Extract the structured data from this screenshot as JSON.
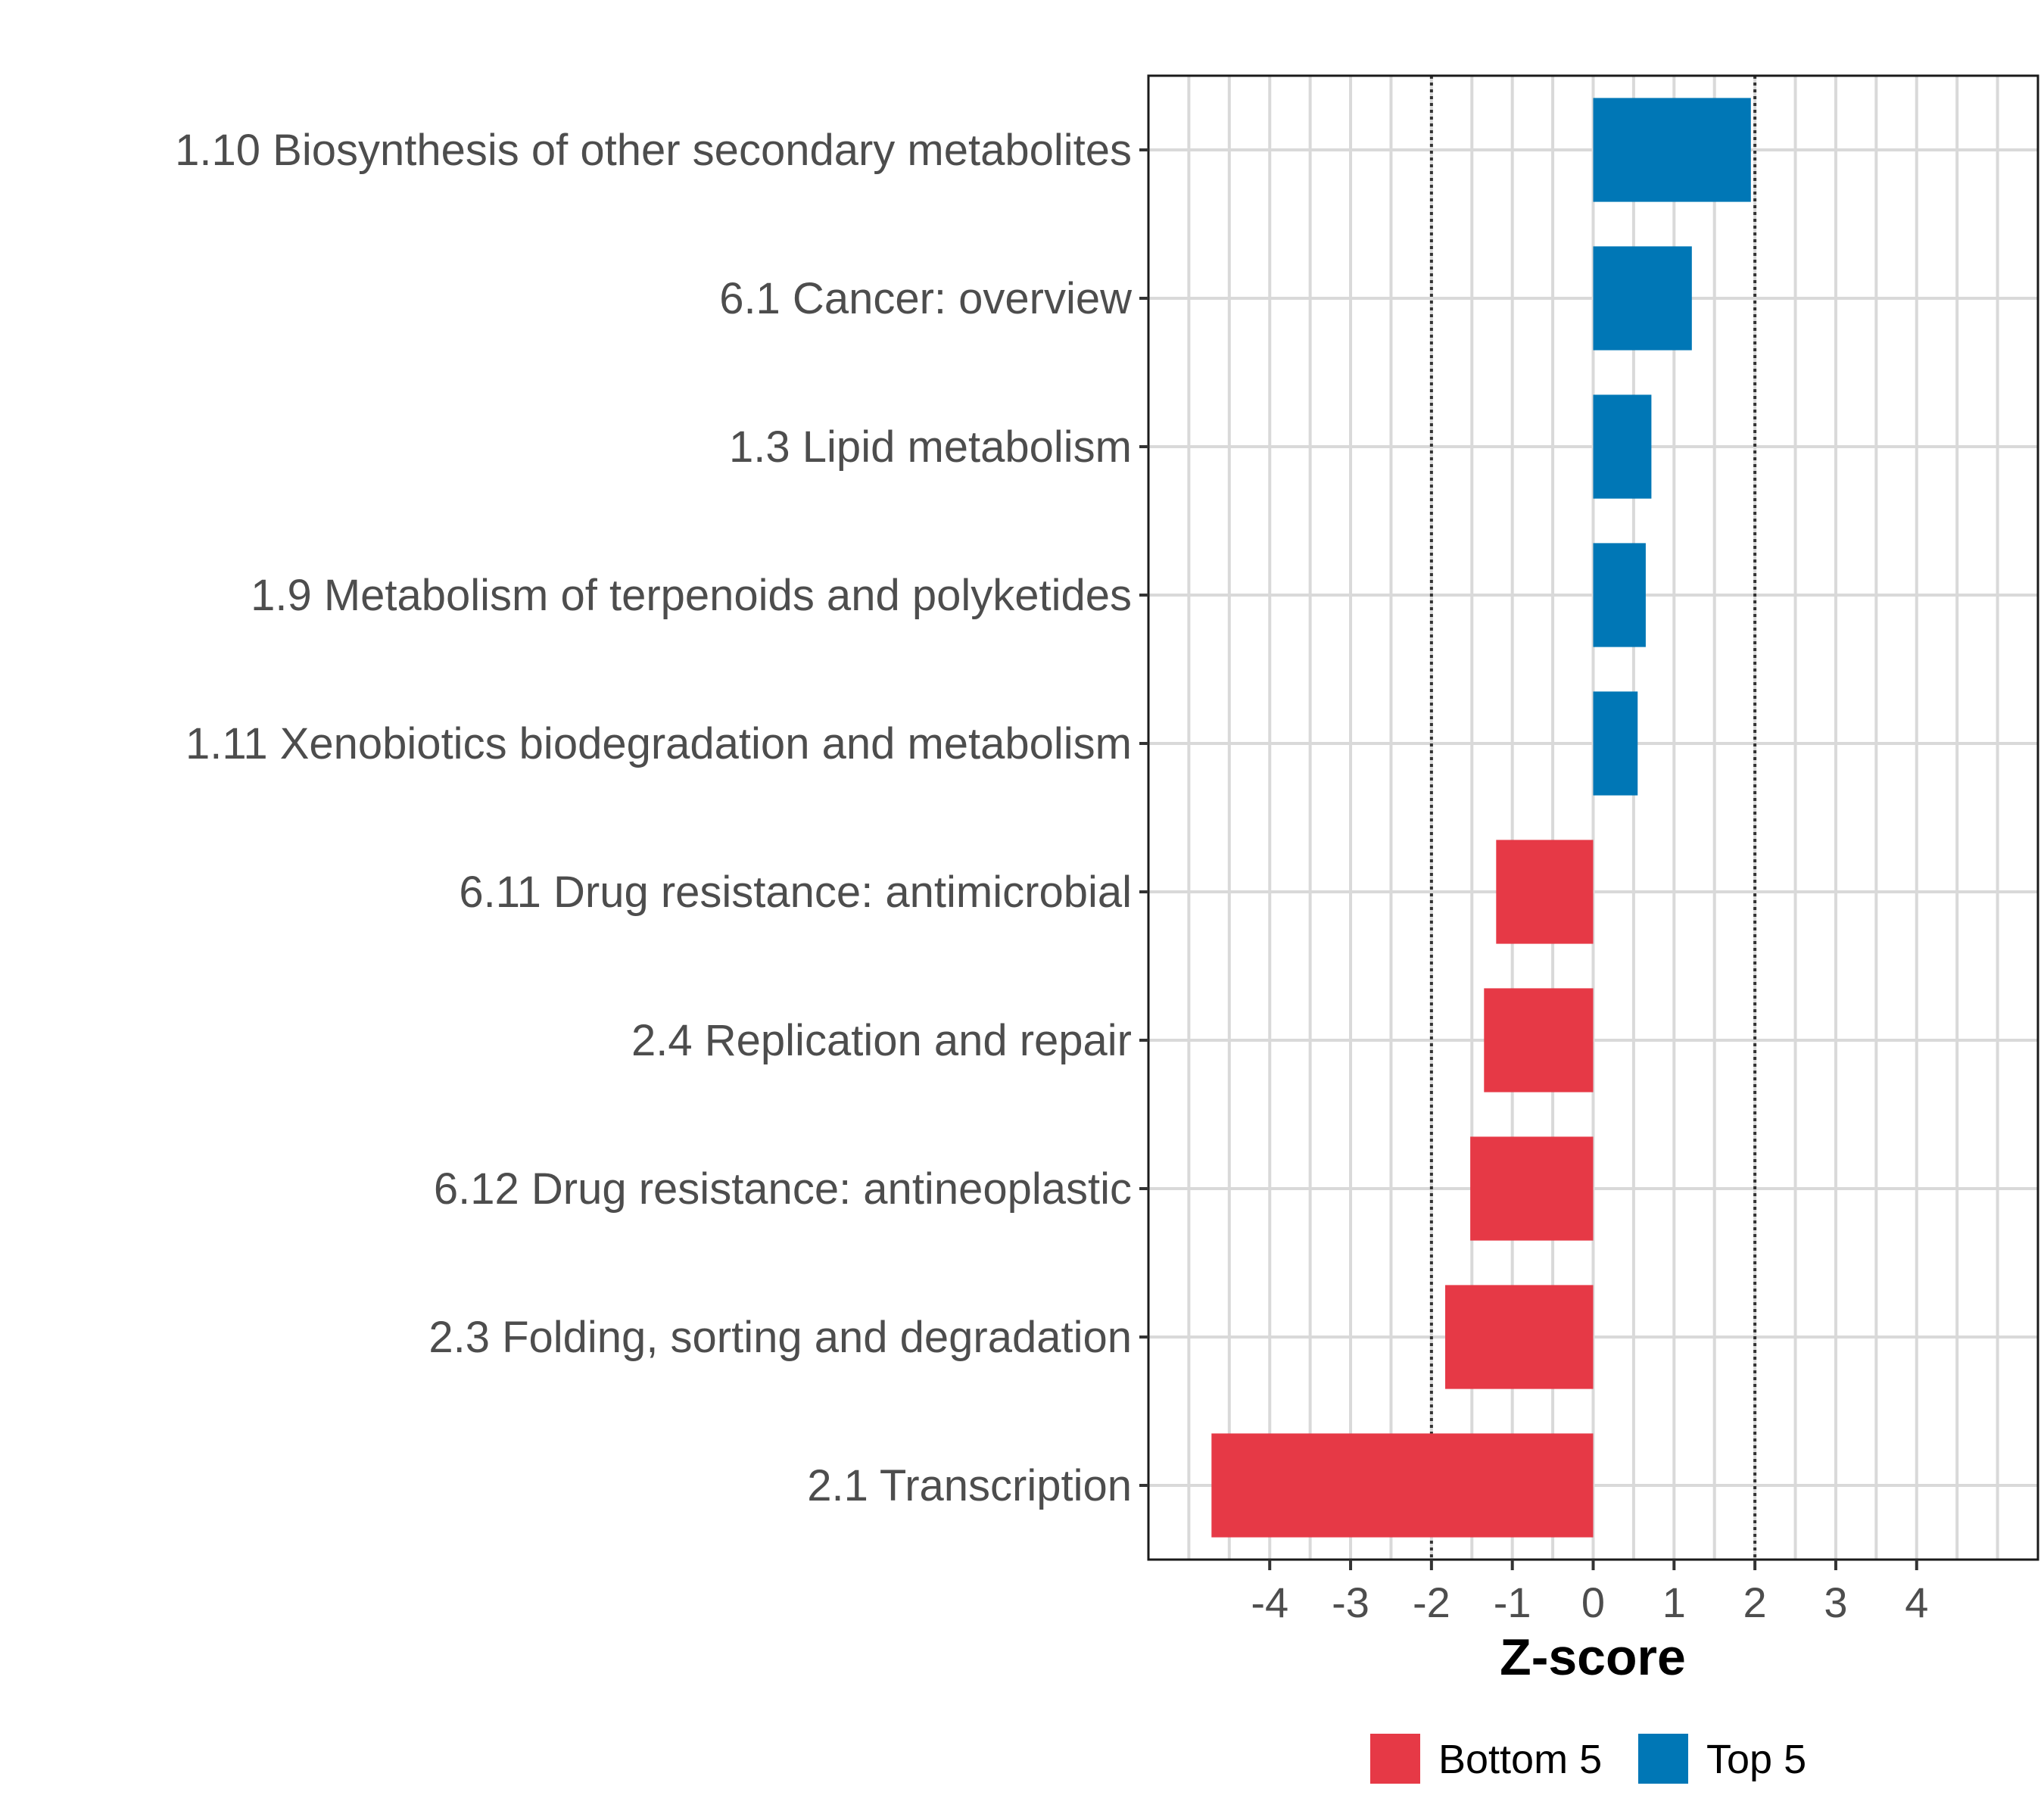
{
  "chart_data": {
    "type": "bar",
    "orientation": "horizontal",
    "title": "",
    "xlabel": "Z-score",
    "ylabel": "",
    "xlim": [
      -5.5,
      5.5
    ],
    "xticks": [
      -4,
      -3,
      -2,
      -1,
      0,
      1,
      2,
      3,
      4
    ],
    "xtick_labels": [
      "-4",
      "-3",
      "-2",
      "-1",
      "0",
      "1",
      "2",
      "3",
      "4"
    ],
    "reference_lines": [
      -2,
      2
    ],
    "grid": true,
    "legend_position": "bottom",
    "categories": [
      "1.10 Biosynthesis of other secondary metabolites",
      "6.1 Cancer: overview",
      "1.3 Lipid metabolism",
      "1.9 Metabolism of terpenoids and polyketides",
      "1.11 Xenobiotics biodegradation and metabolism",
      "6.11 Drug resistance: antimicrobial",
      "2.4 Replication and repair",
      "6.12 Drug resistance: antineoplastic",
      "2.3 Folding, sorting and degradation",
      "2.1 Transcription"
    ],
    "values": [
      1.95,
      1.22,
      0.72,
      0.65,
      0.55,
      -1.2,
      -1.35,
      -1.52,
      -1.83,
      -4.72
    ],
    "groups": [
      "Top 5",
      "Top 5",
      "Top 5",
      "Top 5",
      "Top 5",
      "Bottom 5",
      "Bottom 5",
      "Bottom 5",
      "Bottom 5",
      "Bottom 5"
    ],
    "legend": [
      {
        "name": "Bottom 5",
        "color": "#e63946"
      },
      {
        "name": "Top 5",
        "color": "#0077b6"
      }
    ]
  }
}
